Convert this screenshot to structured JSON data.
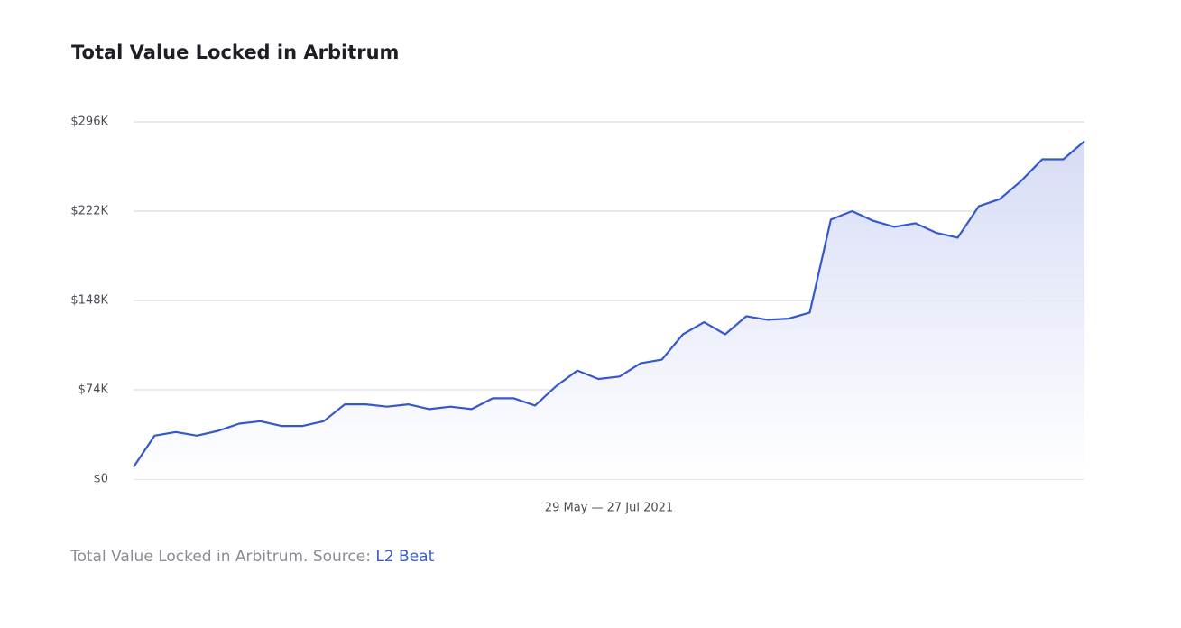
{
  "chart_data": {
    "type": "line",
    "title": "Total Value Locked in Arbitrum",
    "x_label": "29 May — 27 Jul 2021",
    "categories": [
      null,
      null,
      null,
      null,
      null,
      null,
      null,
      null,
      null,
      null,
      null,
      null,
      null,
      null,
      null,
      null,
      null,
      null,
      null,
      null,
      null,
      null,
      null,
      null,
      null,
      null,
      null,
      null,
      null,
      null,
      null,
      null,
      null,
      null,
      null,
      null,
      null,
      null,
      null,
      null,
      null,
      null,
      null,
      null,
      null,
      null
    ],
    "series": [
      {
        "name": "Total Value Locked",
        "color": "#3558cc",
        "values": [
          10000,
          36000,
          39000,
          36000,
          40000,
          46000,
          48000,
          44000,
          44000,
          48000,
          62000,
          62000,
          60000,
          62000,
          58000,
          60000,
          58000,
          67000,
          67000,
          61000,
          77000,
          90000,
          83000,
          85000,
          96000,
          99000,
          120000,
          130000,
          120000,
          135000,
          132000,
          133000,
          138000,
          215000,
          222000,
          214000,
          209000,
          212000,
          204000,
          200000,
          226000,
          232000,
          247000,
          265000,
          265000,
          280000
        ]
      }
    ],
    "ylim": [
      0,
      296000
    ],
    "yticks": [
      {
        "value": 0,
        "label": "$0"
      },
      {
        "value": 74000,
        "label": "$74K"
      },
      {
        "value": 148000,
        "label": "$148K"
      },
      {
        "value": 222000,
        "label": "$222K"
      },
      {
        "value": 296000,
        "label": "$296K"
      }
    ],
    "grid": true,
    "caption": {
      "text": "Total Value Locked in Arbitrum. Source:",
      "link": "L2 Beat"
    }
  }
}
